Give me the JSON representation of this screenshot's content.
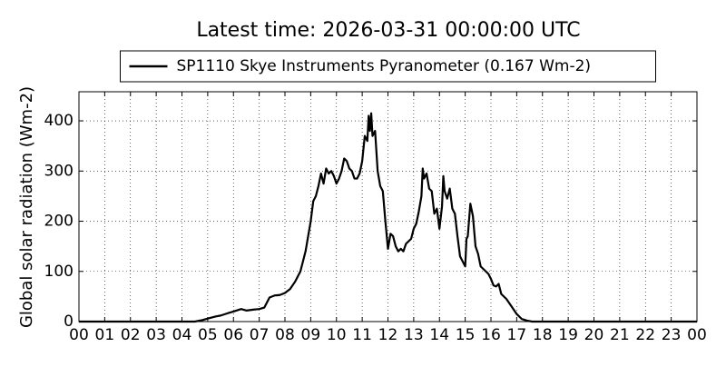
{
  "chart_data": {
    "type": "line",
    "title": "Latest time: 2026-03-31 00:00:00 UTC",
    "y_label": "Global solar radiation (Wm-2)",
    "grid": true,
    "legend": "upper center",
    "x": [
      0,
      4.5,
      4.8,
      5.0,
      5.3,
      5.5,
      5.8,
      6.0,
      6.3,
      6.5,
      6.8,
      7.0,
      7.2,
      7.4,
      7.6,
      7.8,
      8.0,
      8.2,
      8.4,
      8.6,
      8.8,
      9.0,
      9.1,
      9.2,
      9.3,
      9.4,
      9.5,
      9.6,
      9.7,
      9.8,
      9.9,
      10.0,
      10.1,
      10.2,
      10.3,
      10.4,
      10.5,
      10.6,
      10.7,
      10.8,
      10.9,
      11.0,
      11.1,
      11.2,
      11.25,
      11.3,
      11.35,
      11.4,
      11.5,
      11.6,
      11.7,
      11.8,
      11.9,
      12.0,
      12.1,
      12.2,
      12.3,
      12.4,
      12.5,
      12.6,
      12.7,
      12.8,
      12.9,
      13.0,
      13.1,
      13.2,
      13.3,
      13.35,
      13.4,
      13.5,
      13.6,
      13.7,
      13.8,
      13.9,
      14.0,
      14.1,
      14.15,
      14.2,
      14.3,
      14.4,
      14.5,
      14.6,
      14.7,
      14.8,
      14.9,
      15.0,
      15.05,
      15.1,
      15.2,
      15.3,
      15.4,
      15.5,
      15.6,
      15.8,
      15.9,
      16.0,
      16.1,
      16.2,
      16.3,
      16.4,
      16.6,
      16.8,
      17.0,
      17.2,
      17.4,
      17.6,
      24
    ],
    "series": [
      {
        "name": "SP1110 Skye Instruments Pyranometer (0.167 Wm-2)",
        "color": "#000000",
        "values": [
          0,
          0,
          3,
          6,
          10,
          12,
          17,
          20,
          25,
          22,
          24,
          25,
          28,
          48,
          52,
          53,
          57,
          65,
          80,
          100,
          140,
          200,
          240,
          250,
          270,
          295,
          275,
          305,
          295,
          300,
          290,
          275,
          285,
          300,
          325,
          320,
          305,
          300,
          285,
          285,
          295,
          320,
          370,
          360,
          410,
          380,
          415,
          370,
          380,
          300,
          270,
          260,
          200,
          145,
          175,
          170,
          150,
          140,
          145,
          140,
          155,
          160,
          165,
          185,
          195,
          220,
          250,
          305,
          285,
          295,
          265,
          260,
          215,
          225,
          185,
          230,
          290,
          260,
          245,
          265,
          225,
          215,
          170,
          130,
          120,
          110,
          165,
          170,
          235,
          210,
          150,
          135,
          110,
          100,
          95,
          85,
          72,
          70,
          75,
          55,
          45,
          30,
          15,
          5,
          2,
          0,
          0
        ]
      }
    ],
    "xlim": [
      0,
      24
    ],
    "xticks": [
      {
        "value": 0,
        "label": "00"
      },
      {
        "value": 1,
        "label": "01"
      },
      {
        "value": 2,
        "label": "02"
      },
      {
        "value": 3,
        "label": "03"
      },
      {
        "value": 4,
        "label": "04"
      },
      {
        "value": 5,
        "label": "05"
      },
      {
        "value": 6,
        "label": "06"
      },
      {
        "value": 7,
        "label": "07"
      },
      {
        "value": 8,
        "label": "08"
      },
      {
        "value": 9,
        "label": "09"
      },
      10,
      11,
      12,
      13,
      14,
      15,
      16,
      17,
      18,
      19,
      20,
      21,
      22,
      23,
      {
        "value": 24,
        "label": "00"
      }
    ],
    "ylim": [
      0,
      458
    ],
    "yticks": [
      0,
      100,
      200,
      300,
      400
    ]
  }
}
